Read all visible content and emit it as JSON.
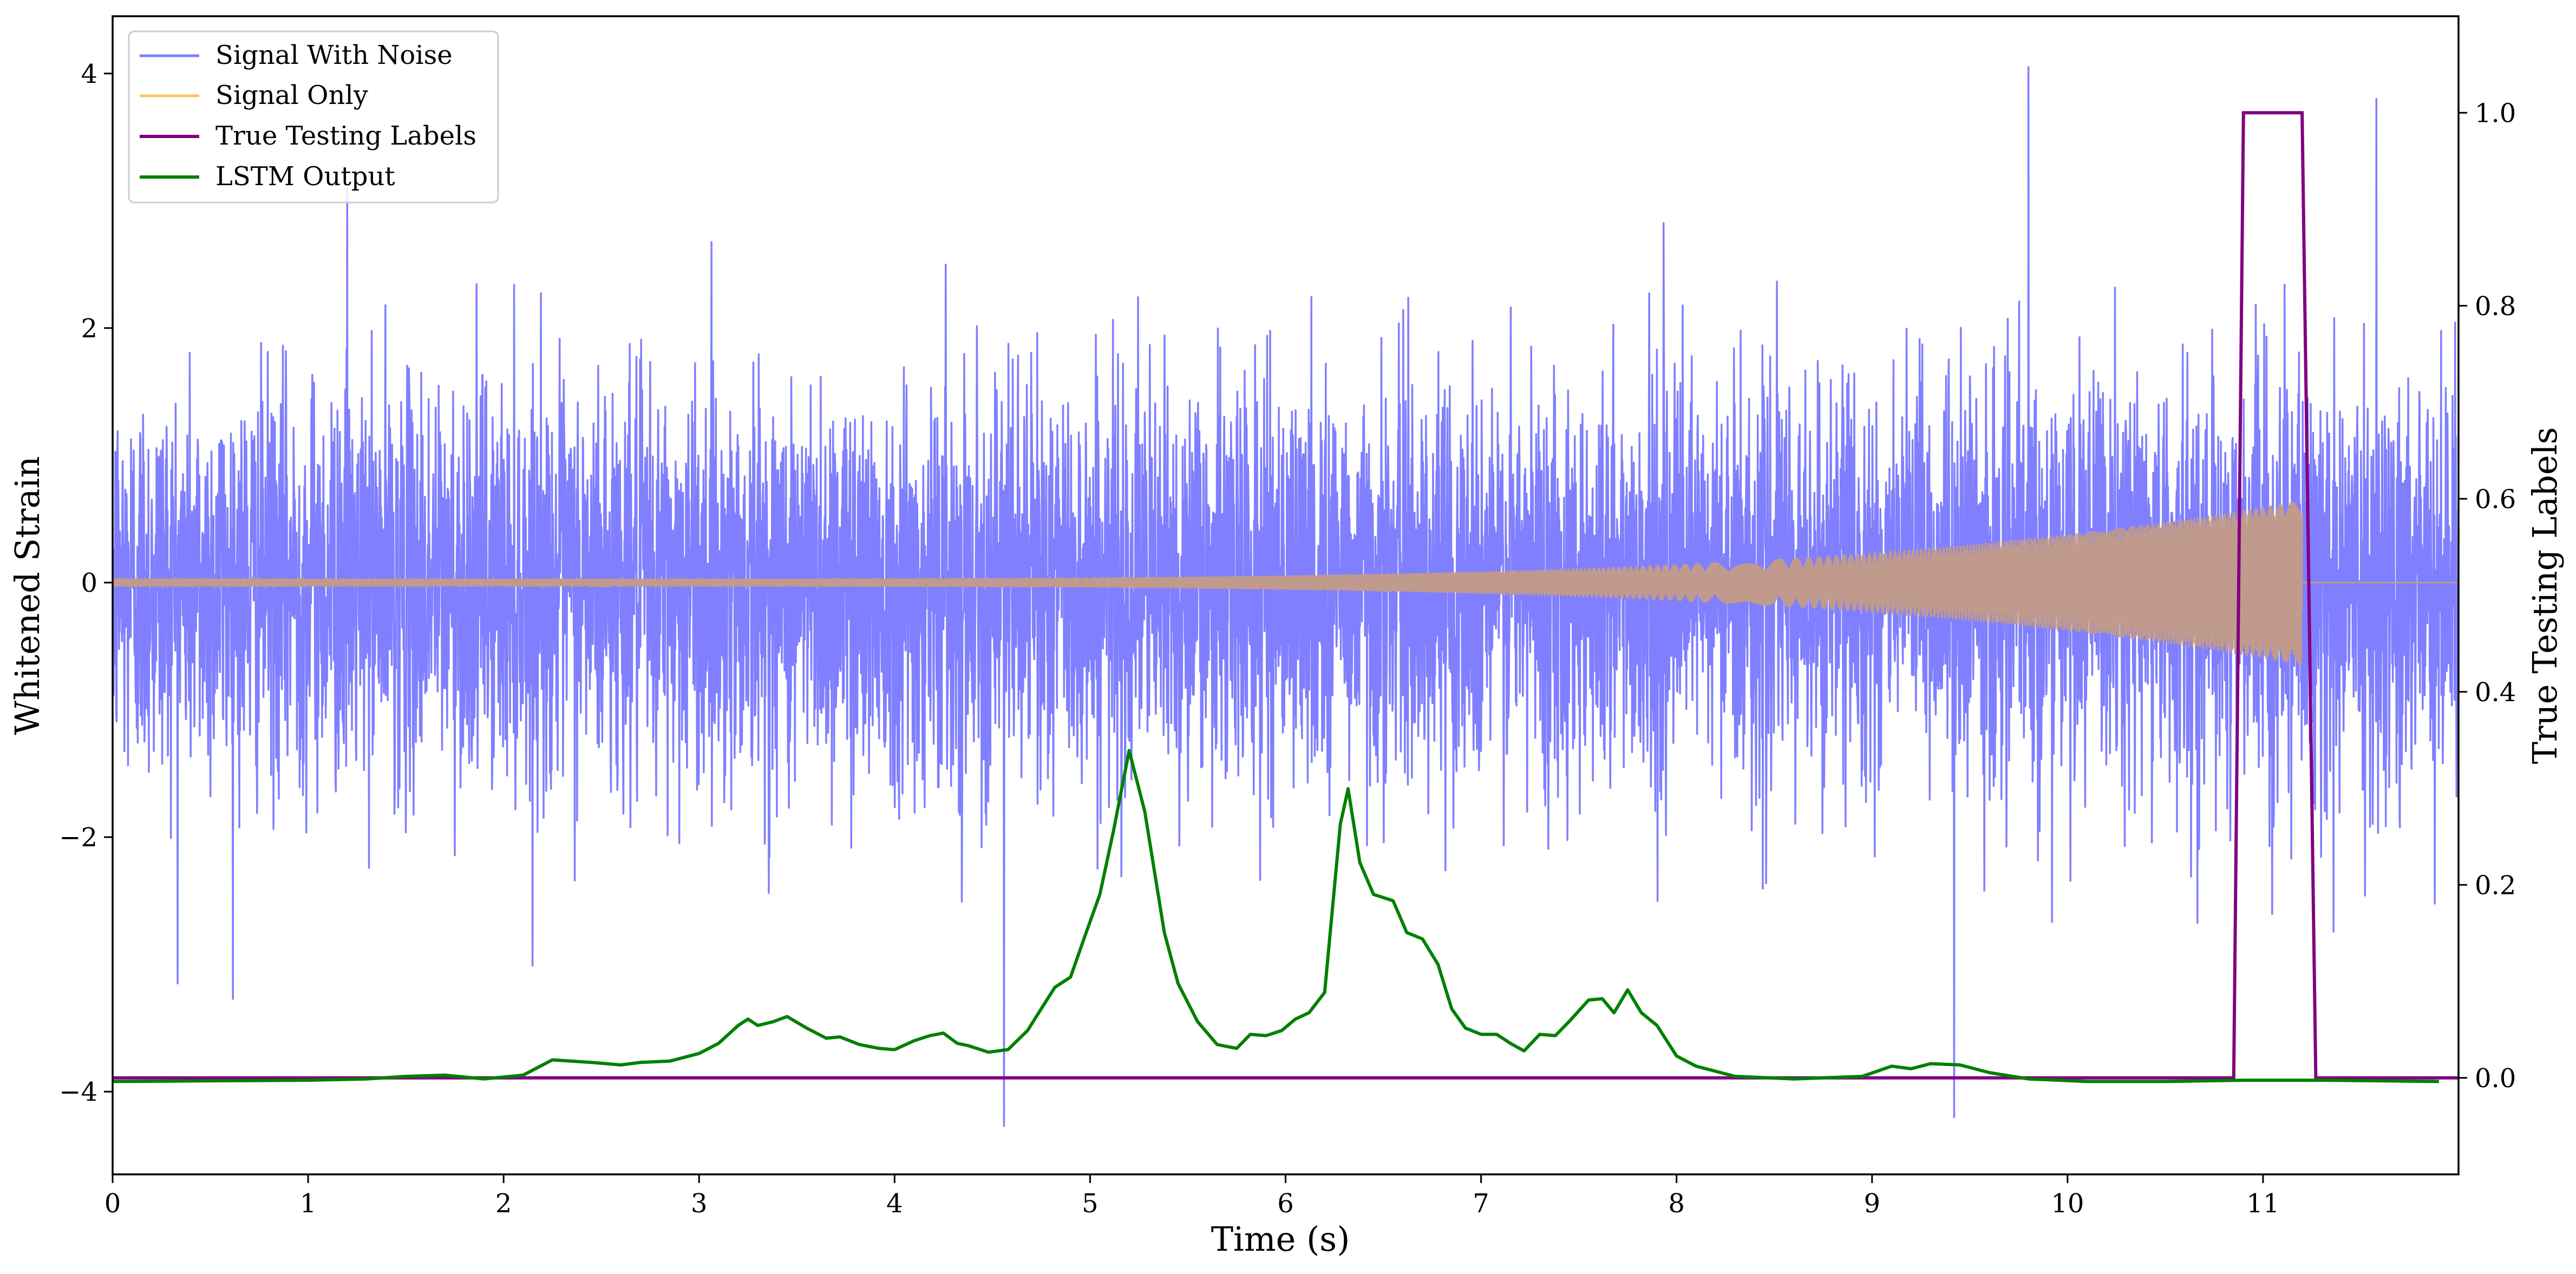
{
  "chart_data": {
    "type": "line",
    "xlabel": "Time (s)",
    "ylabel_left": "Whitened Strain",
    "ylabel_right": "True Testing Labels",
    "xlim": [
      0,
      12
    ],
    "ylim_left": [
      -4.65,
      4.45
    ],
    "ylim_right": [
      -0.1,
      1.1
    ],
    "x_ticks": [
      0,
      1,
      2,
      3,
      4,
      5,
      6,
      7,
      8,
      9,
      10,
      11
    ],
    "x_tick_labels": [
      "0",
      "1",
      "2",
      "3",
      "4",
      "5",
      "6",
      "7",
      "8",
      "9",
      "10",
      "11"
    ],
    "y_left_ticks": [
      -4,
      -2,
      0,
      2,
      4
    ],
    "y_left_tick_labels": [
      "−4",
      "−2",
      "0",
      "2",
      "4"
    ],
    "y_right_ticks": [
      0.0,
      0.2,
      0.4,
      0.6,
      0.8,
      1.0
    ],
    "y_right_tick_labels": [
      "0.0",
      "0.2",
      "0.4",
      "0.6",
      "0.8",
      "1.0"
    ],
    "legend_position": "top-left",
    "legend": [
      "Signal With Noise",
      "Signal Only",
      "True Testing Labels",
      "LSTM Output"
    ],
    "colors": {
      "noise": "#7f7fff",
      "signal": "#ffbf66",
      "overlap": "#c09a8d",
      "labels": "#800080",
      "lstm": "#008000"
    },
    "series": [
      {
        "name": "Signal With Noise",
        "axis": "left",
        "description_values": "random whitened noise, std ~0.75, range about -4.3 to 4.0",
        "sample_extremes": [
          [
            9.8,
            4.05
          ],
          [
            4.56,
            -4.27
          ],
          [
            9.42,
            -4.2
          ],
          [
            1.2,
            3.1
          ],
          [
            11.58,
            3.8
          ]
        ]
      },
      {
        "name": "Signal Only",
        "axis": "left",
        "chirp_start": 0.0,
        "chirp_end": 11.2,
        "amplitude_start": 0.03,
        "amplitude_end": 0.65,
        "after_end": 0.0
      },
      {
        "name": "True Testing Labels",
        "axis": "right",
        "x": [
          0,
          10.85,
          10.9,
          11.2,
          11.27,
          12
        ],
        "y": [
          0,
          0,
          1,
          1,
          0,
          0
        ]
      },
      {
        "name": "LSTM Output",
        "axis": "left",
        "x": [
          0,
          1.0,
          1.3,
          1.5,
          1.7,
          1.9,
          2.1,
          2.25,
          2.45,
          2.6,
          2.7,
          2.85,
          3.0,
          3.1,
          3.2,
          3.25,
          3.3,
          3.38,
          3.45,
          3.55,
          3.65,
          3.72,
          3.82,
          3.92,
          4.0,
          4.1,
          4.18,
          4.25,
          4.32,
          4.38,
          4.48,
          4.58,
          4.68,
          4.75,
          4.82,
          4.9,
          4.98,
          5.05,
          5.12,
          5.2,
          5.28,
          5.38,
          5.45,
          5.55,
          5.65,
          5.75,
          5.82,
          5.9,
          5.98,
          6.05,
          6.12,
          6.2,
          6.28,
          6.32,
          6.38,
          6.45,
          6.55,
          6.62,
          6.7,
          6.78,
          6.85,
          6.92,
          7.0,
          7.08,
          7.15,
          7.22,
          7.3,
          7.38,
          7.45,
          7.55,
          7.62,
          7.68,
          7.75,
          7.82,
          7.9,
          8.0,
          8.1,
          8.3,
          8.6,
          8.95,
          9.1,
          9.2,
          9.3,
          9.45,
          9.6,
          9.8,
          10.1,
          10.5,
          10.9,
          11.3,
          11.9
        ],
        "y": [
          -3.92,
          -3.91,
          -3.9,
          -3.88,
          -3.87,
          -3.9,
          -3.87,
          -3.75,
          -3.77,
          -3.79,
          -3.77,
          -3.76,
          -3.7,
          -3.62,
          -3.48,
          -3.43,
          -3.48,
          -3.45,
          -3.41,
          -3.5,
          -3.58,
          -3.57,
          -3.63,
          -3.66,
          -3.67,
          -3.6,
          -3.56,
          -3.54,
          -3.62,
          -3.64,
          -3.69,
          -3.67,
          -3.52,
          -3.35,
          -3.18,
          -3.1,
          -2.75,
          -2.45,
          -1.95,
          -1.32,
          -1.8,
          -2.75,
          -3.15,
          -3.45,
          -3.63,
          -3.66,
          -3.55,
          -3.56,
          -3.52,
          -3.43,
          -3.38,
          -3.22,
          -1.9,
          -1.62,
          -2.2,
          -2.45,
          -2.5,
          -2.75,
          -2.8,
          -3.0,
          -3.35,
          -3.5,
          -3.55,
          -3.55,
          -3.62,
          -3.68,
          -3.55,
          -3.56,
          -3.45,
          -3.28,
          -3.27,
          -3.38,
          -3.2,
          -3.38,
          -3.48,
          -3.72,
          -3.8,
          -3.88,
          -3.9,
          -3.88,
          -3.8,
          -3.82,
          -3.78,
          -3.79,
          -3.85,
          -3.9,
          -3.92,
          -3.92,
          -3.91,
          -3.91,
          -3.92
        ]
      }
    ]
  }
}
